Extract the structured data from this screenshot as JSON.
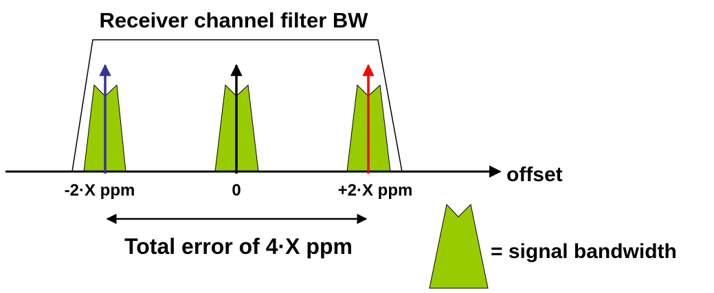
{
  "title": "Receiver channel filter BW",
  "axis_label": "offset",
  "tick_labels": [
    "-2·X ppm",
    "0",
    "+2·X ppm"
  ],
  "error_label": "Total error of 4·X ppm",
  "legend_label": "= signal bandwidth",
  "colors": {
    "signal_fill": "#99cc00",
    "carrier_left": "#333399",
    "carrier_center": "#000000",
    "carrier_right": "#ff0000",
    "outline": "#000000"
  }
}
